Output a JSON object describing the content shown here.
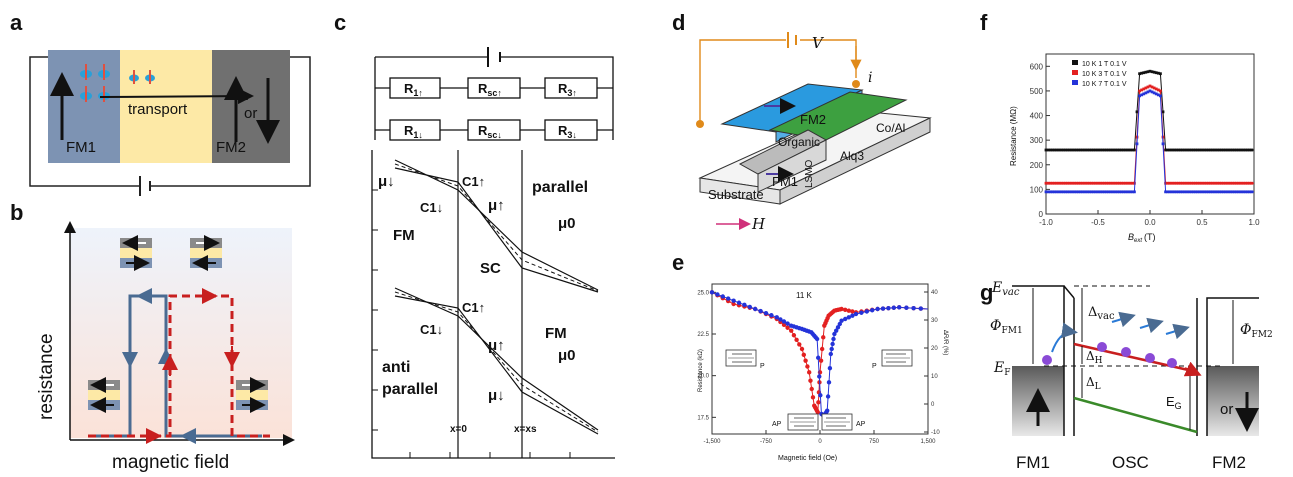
{
  "panels": {
    "a": "a",
    "b": "b",
    "c": "c",
    "d": "d",
    "e": "e",
    "f": "f",
    "g": "g"
  },
  "a": {
    "fm1": "FM1",
    "transport": "transport",
    "or": "or",
    "fm2": "FM2"
  },
  "b": {
    "ylabel": "resistance",
    "xlabel": "magnetic field"
  },
  "c": {
    "r1u": "R",
    "r1u_sub": "1↑",
    "rscu": "R",
    "rscu_sub": "sc↑",
    "r3u": "R",
    "r3u_sub": "3↑",
    "r1d": "R",
    "r1d_sub": "1↓",
    "rscd": "R",
    "rscd_sub": "sc↓",
    "r3d": "R",
    "r3d_sub": "3↓",
    "mu_down": "μ↓",
    "c1up": "C1↑",
    "c1down": "C1↓",
    "mu_up": "μ↑",
    "parallel": "parallel",
    "mu0": "μ0",
    "fm_left": "FM",
    "sc": "SC",
    "fm_right": "FM",
    "mu_down2": "μ↓",
    "c1up2": "C1↑",
    "c1down2": "C1↓",
    "mu_up2": "μ↑",
    "mu0_2": "μ0",
    "anti": "anti",
    "parallel2": "parallel",
    "x0": "x=0",
    "xs": "x=xs"
  },
  "d": {
    "v": "V",
    "i": "i",
    "fm2": "FM2",
    "coal": "Co/Al",
    "organic": "Organic",
    "alq3": "Alq3",
    "lsmo": "LSMO",
    "fm1": "FM1",
    "substrate": "Substrate",
    "h": "H"
  },
  "e": {
    "ylabel_left": "Resistance (kΩ)",
    "ylabel_right": "ΔR/R (%)",
    "xlabel": "Magnetic field (Oe)",
    "temp": "11 K",
    "p_left": "P",
    "p_right": "P",
    "ap_left": "AP",
    "ap_right": "AP",
    "yticks": [
      "25.0",
      "22.5",
      "20.0",
      "17.5"
    ],
    "yticks_right": [
      "40",
      "30",
      "20",
      "10",
      "0",
      "-10"
    ],
    "xticks": [
      "-1,500",
      "-750",
      "0",
      "750",
      "1,500"
    ]
  },
  "f": {
    "ylabel": "Resistance (MΩ)",
    "xlabel": "B",
    "xlabel_sub": "ext",
    "xlabel_unit": "(T)",
    "yticks": [
      "600",
      "500",
      "400",
      "300",
      "200",
      "100",
      "0"
    ],
    "xticks": [
      "-1.0",
      "-0.5",
      "0.0",
      "0.5",
      "1.0"
    ],
    "legend": [
      "10 K 1 T 0.1 V",
      "10 K 3 T 0.1 V",
      "10 K 7 T 0.1 V"
    ],
    "colors": [
      "#111111",
      "#e32020",
      "#2433d9"
    ]
  },
  "g": {
    "evac": "E",
    "evac_sub": "vac",
    "dvac": "Δ",
    "dvac_sub": "vac",
    "phi1": "Φ",
    "phi1_sub": "FM1",
    "phi2": "Φ",
    "phi2_sub": "FM2",
    "dh": "Δ",
    "dh_sub": "H",
    "ef": "E",
    "ef_sub": "F",
    "dl": "Δ",
    "dl_sub": "L",
    "eg": "E",
    "eg_sub": "G",
    "or": "or",
    "fm1": "FM1",
    "osc": "OSC",
    "fm2": "FM2"
  },
  "chart_data": [
    {
      "type": "scatter",
      "title": "",
      "xlabel": "Magnetic field (Oe)",
      "ylabel": "Resistance (kΩ)",
      "xlim": [
        -1500,
        1500
      ],
      "ylim": [
        16.5,
        25.5
      ],
      "series": [
        {
          "x": [
            -1500,
            -1200,
            -900,
            -600,
            -400,
            -250,
            -150,
            -80,
            -30,
            0,
            60,
            120,
            200,
            300,
            500,
            800,
            1100,
            1500
          ],
          "values": [
            25.0,
            24.3,
            24.0,
            23.4,
            22.7,
            21.6,
            20.2,
            18.2,
            17.8,
            20.2,
            23.0,
            23.6,
            23.9,
            24.0,
            23.8,
            24.0,
            24.1,
            24.0
          ]
        },
        {
          "x": [
            -1500,
            -1200,
            -900,
            -600,
            -400,
            -250,
            -120,
            -40,
            20,
            60,
            100,
            150,
            200,
            300,
            500,
            800,
            1100,
            1500
          ],
          "values": [
            25.0,
            24.5,
            24.0,
            23.5,
            23.0,
            22.8,
            22.6,
            22.2,
            17.7,
            17.6,
            17.9,
            21.3,
            22.5,
            23.3,
            23.7,
            24.0,
            24.1,
            24.0
          ]
        }
      ]
    },
    {
      "type": "scatter",
      "title": "",
      "xlabel": "Bext (T)",
      "ylabel": "Resistance (MΩ)",
      "xlim": [
        -1.0,
        1.0
      ],
      "ylim": [
        0,
        650
      ],
      "series": [
        {
          "name": "10 K 1 T 0.1 V",
          "x": [
            -1.0,
            -0.5,
            -0.15,
            -0.1,
            0.0,
            0.1,
            0.15,
            0.5,
            1.0
          ],
          "values": [
            260,
            260,
            260,
            570,
            580,
            570,
            260,
            260,
            260
          ]
        },
        {
          "name": "10 K 3 T 0.1 V",
          "x": [
            -1.0,
            -0.5,
            -0.15,
            -0.1,
            0.0,
            0.1,
            0.15,
            0.5,
            1.0
          ],
          "values": [
            125,
            125,
            125,
            500,
            520,
            500,
            125,
            125,
            125
          ]
        },
        {
          "name": "10 K 7 T 0.1 V",
          "x": [
            -1.0,
            -0.5,
            -0.15,
            -0.1,
            0.0,
            0.1,
            0.15,
            0.5,
            1.0
          ],
          "values": [
            90,
            90,
            90,
            480,
            500,
            480,
            90,
            90,
            90
          ]
        }
      ]
    }
  ]
}
